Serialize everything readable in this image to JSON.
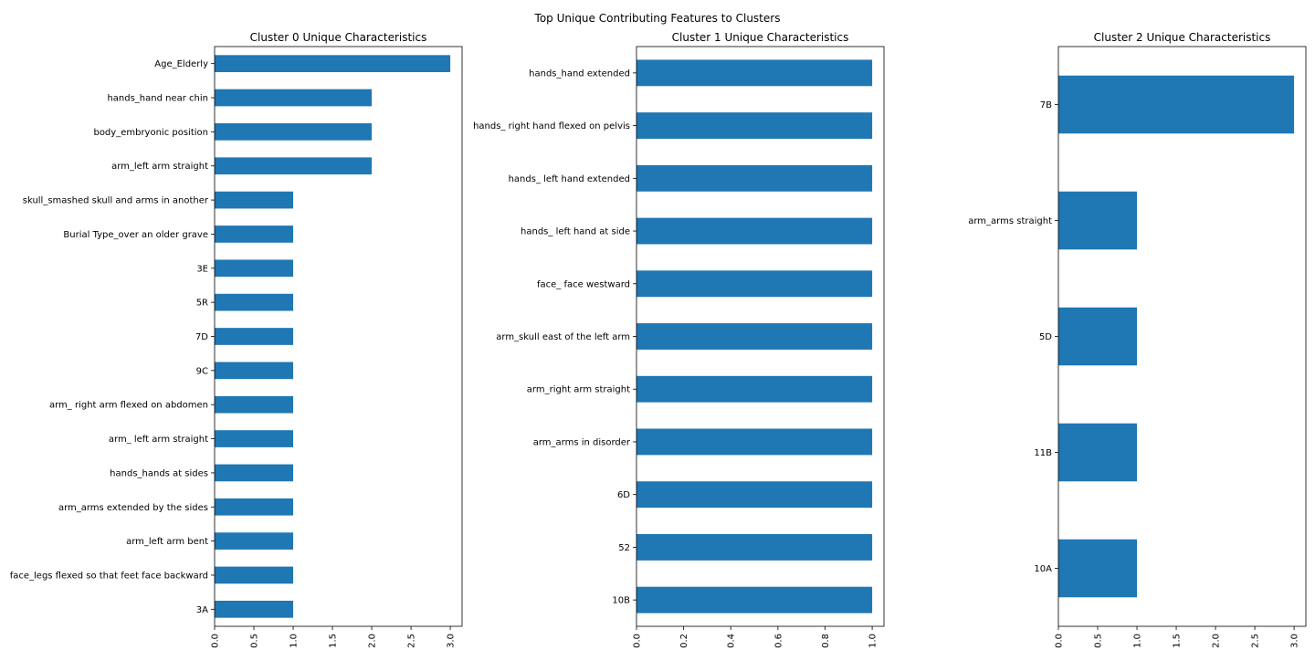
{
  "suptitle": "Top Unique Contributing Features to Clusters",
  "bar_color": "#1f77b4",
  "chart_data": [
    {
      "type": "bar",
      "orientation": "horizontal",
      "title": "Cluster 0 Unique Characteristics",
      "categories": [
        "Age_Elderly",
        "hands_hand near chin",
        "body_embryonic position",
        "arm_left arm straight",
        "skull_smashed skull and arms in another",
        "Burial Type_over an older grave",
        "3E",
        "5R",
        "7D",
        "9C",
        "arm_ right arm flexed on abdomen",
        "arm_ left arm straight",
        "hands_hands at sides",
        "arm_arms extended by the sides",
        "arm_left arm bent",
        "face_legs flexed so that feet face backward",
        "3A"
      ],
      "values": [
        3,
        2,
        2,
        2,
        1,
        1,
        1,
        1,
        1,
        1,
        1,
        1,
        1,
        1,
        1,
        1,
        1
      ],
      "xlim": [
        0,
        3.15
      ],
      "xticks": [
        "0.0",
        "0.5",
        "1.0",
        "1.5",
        "2.0",
        "2.5",
        "3.0"
      ],
      "xtick_values": [
        0,
        0.5,
        1,
        1.5,
        2,
        2.5,
        3
      ],
      "xlabel": "",
      "ylabel": "",
      "grid": false
    },
    {
      "type": "bar",
      "orientation": "horizontal",
      "title": "Cluster 1 Unique Characteristics",
      "categories": [
        "hands_hand extended",
        "hands_ right hand flexed on pelvis",
        "hands_ left hand extended",
        "hands_ left hand at side",
        "face_ face westward",
        "arm_skull east of the left arm",
        "arm_right arm straight",
        "arm_arms in disorder",
        "6D",
        "52",
        "10B"
      ],
      "values": [
        1,
        1,
        1,
        1,
        1,
        1,
        1,
        1,
        1,
        1,
        1
      ],
      "xlim": [
        0,
        1.05
      ],
      "xticks": [
        "0.0",
        "0.2",
        "0.4",
        "0.6",
        "0.8",
        "1.0"
      ],
      "xtick_values": [
        0,
        0.2,
        0.4,
        0.6,
        0.8,
        1.0
      ],
      "xlabel": "",
      "ylabel": "",
      "grid": false
    },
    {
      "type": "bar",
      "orientation": "horizontal",
      "title": "Cluster 2 Unique Characteristics",
      "categories": [
        "7B",
        "arm_arms straight",
        "5D",
        "11B",
        "10A"
      ],
      "values": [
        3,
        1,
        1,
        1,
        1
      ],
      "xlim": [
        0,
        3.15
      ],
      "xticks": [
        "0.0",
        "0.5",
        "1.0",
        "1.5",
        "2.0",
        "2.5",
        "3.0"
      ],
      "xtick_values": [
        0,
        0.5,
        1,
        1.5,
        2,
        2.5,
        3
      ],
      "xlabel": "",
      "ylabel": "",
      "grid": false
    }
  ]
}
